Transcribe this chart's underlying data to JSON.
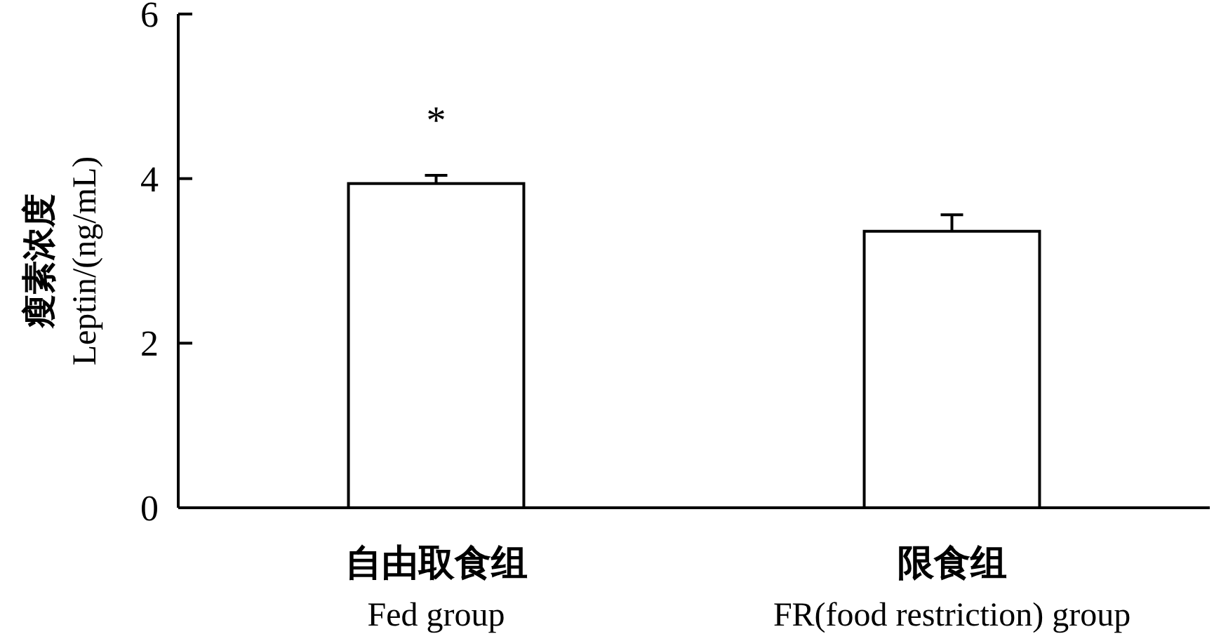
{
  "chart_data": {
    "type": "bar",
    "ylabel": "瘦素浓度\nLeptin/(ng/mL)",
    "categories": [
      "自由取食组\nFed group",
      "限食组\nFR(food restriction) group"
    ],
    "values": [
      3.94,
      3.36
    ],
    "errors": [
      0.1,
      0.2
    ],
    "color": "#ffffff",
    "ylim": [
      0,
      6
    ],
    "yticks": [
      0,
      2,
      4,
      6
    ],
    "grid": false,
    "annotations": [
      "*"
    ]
  }
}
